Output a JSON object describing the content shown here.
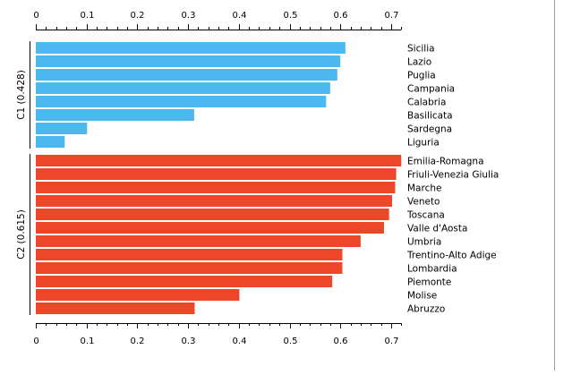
{
  "chart_data": {
    "type": "bar",
    "orientation": "horizontal",
    "xlim": [
      0,
      0.72
    ],
    "x_ticks": [
      0,
      0.1,
      0.2,
      0.3,
      0.4,
      0.5,
      0.6,
      0.7
    ],
    "x_tick_labels": [
      "0",
      "0.1",
      "0.2",
      "0.3",
      "0.4",
      "0.5",
      "0.6",
      "0.7"
    ],
    "axes": [
      "top",
      "bottom"
    ],
    "grid": false,
    "groups": [
      {
        "label": "C1 (0.428)",
        "color": "#4cb8f0",
        "categories": [
          "Sicilia",
          "Lazio",
          "Puglia",
          "Campania",
          "Calabria",
          "Basilicata",
          "Sardegna",
          "Liguria"
        ],
        "values": [
          0.61,
          0.6,
          0.594,
          0.58,
          0.572,
          0.312,
          0.101,
          0.057
        ]
      },
      {
        "label": "C2 (0.615)",
        "color": "#ee4629",
        "categories": [
          "Emilia-Romagna",
          "Friuli-Venezia Giulia",
          "Marche",
          "Veneto",
          "Toscana",
          "Valle d'Aosta",
          "Umbria",
          "Trentino-Alto Adige",
          "Lombardia",
          "Piemonte",
          "Molise",
          "Abruzzo"
        ],
        "values": [
          0.72,
          0.71,
          0.708,
          0.702,
          0.696,
          0.686,
          0.64,
          0.604,
          0.604,
          0.584,
          0.401,
          0.313
        ]
      }
    ]
  }
}
